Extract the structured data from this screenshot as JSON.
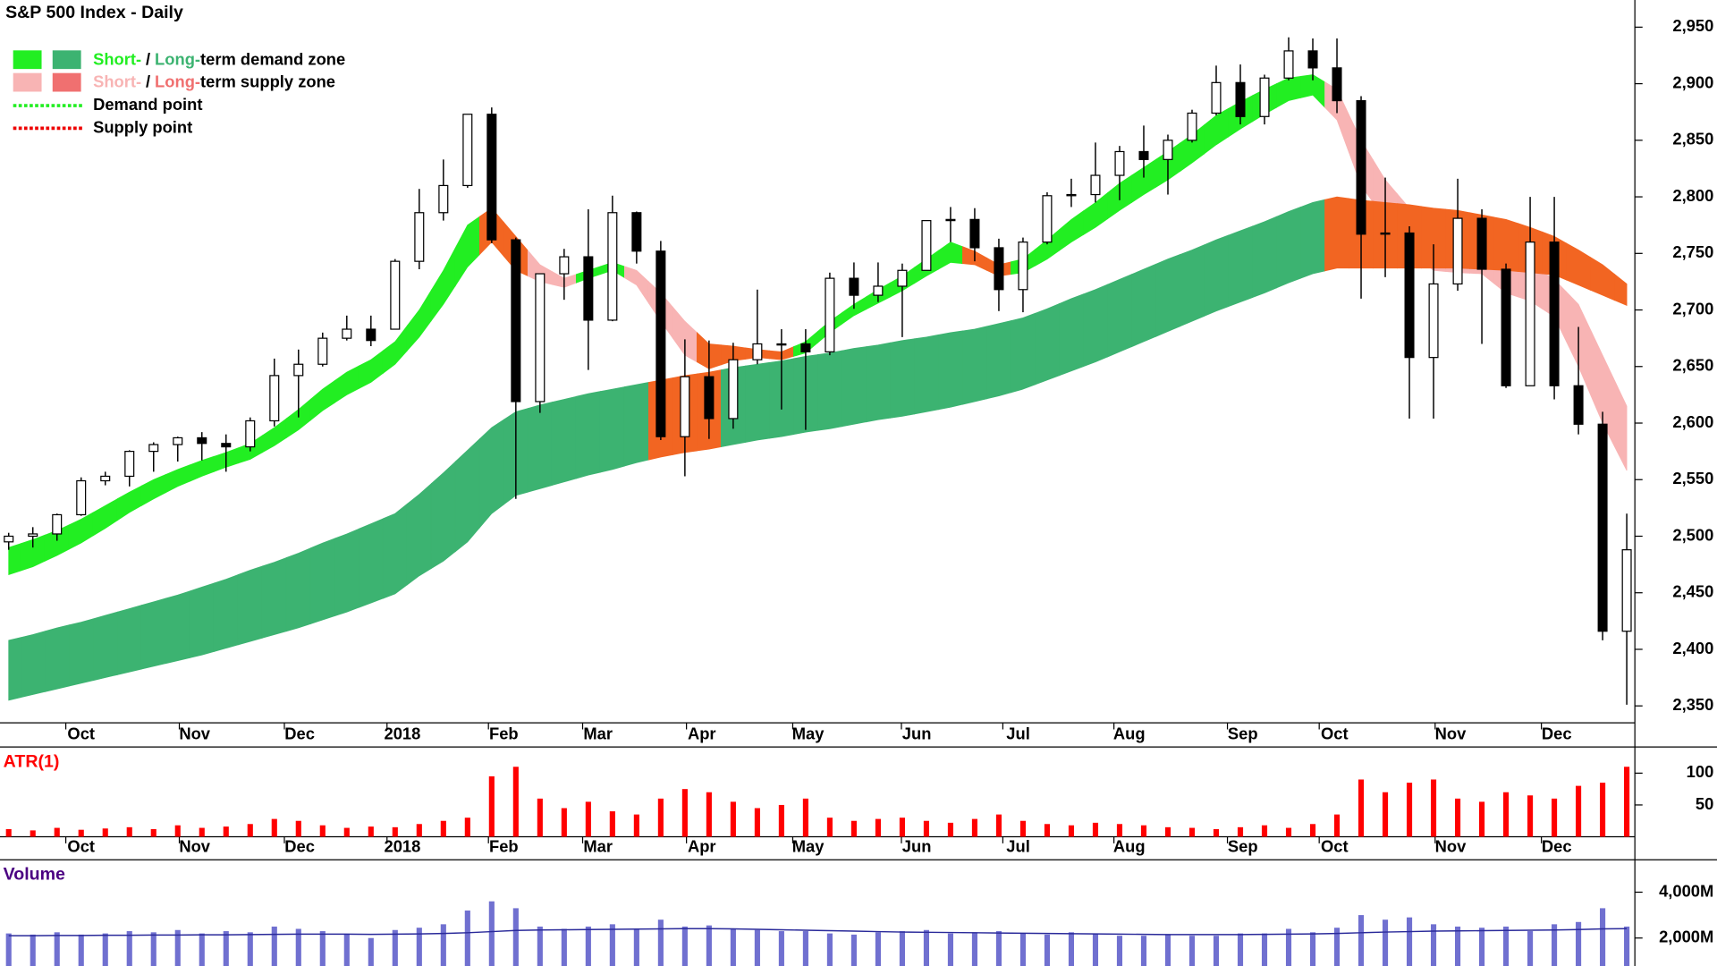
{
  "chart_data": [
    {
      "type": "candlestick",
      "title": "S&P 500 Index - Daily",
      "xlim": [
        -0.36,
        67.2
      ],
      "xticks": [
        {
          "value": 3.0,
          "label": "Oct"
        },
        {
          "value": 7.7,
          "label": "Nov"
        },
        {
          "value": 12.05,
          "label": "Dec"
        },
        {
          "value": 16.3,
          "label": "2018"
        },
        {
          "value": 20.5,
          "label": "Feb"
        },
        {
          "value": 24.4,
          "label": "Mar"
        },
        {
          "value": 28.7,
          "label": "Apr"
        },
        {
          "value": 33.1,
          "label": "May"
        },
        {
          "value": 37.6,
          "label": "Jun"
        },
        {
          "value": 41.8,
          "label": "Jul"
        },
        {
          "value": 46.4,
          "label": "Aug"
        },
        {
          "value": 51.1,
          "label": "Sep"
        },
        {
          "value": 54.9,
          "label": "Oct"
        },
        {
          "value": 59.7,
          "label": "Nov"
        },
        {
          "value": 64.1,
          "label": "Dec"
        }
      ],
      "ylim": [
        2335,
        2974
      ],
      "yticks": [
        {
          "value": 2350,
          "label": "2,350"
        },
        {
          "value": 2400,
          "label": "2,400"
        },
        {
          "value": 2450,
          "label": "2,450"
        },
        {
          "value": 2500,
          "label": "2,500"
        },
        {
          "value": 2550,
          "label": "2,550"
        },
        {
          "value": 2600,
          "label": "2,600"
        },
        {
          "value": 2650,
          "label": "2,650"
        },
        {
          "value": 2700,
          "label": "2,700"
        },
        {
          "value": 2750,
          "label": "2,750"
        },
        {
          "value": 2800,
          "label": "2,800"
        },
        {
          "value": 2850,
          "label": "2,850"
        },
        {
          "value": 2900,
          "label": "2,900"
        },
        {
          "value": 2950,
          "label": "2,950"
        }
      ],
      "up_color": "#ffffff",
      "down_color": "#000000",
      "open": [
        2495,
        2500,
        2502,
        2519,
        2549,
        2553,
        2575,
        2581,
        2587,
        2582,
        2579,
        2602,
        2642,
        2652,
        2675,
        2683,
        2683,
        2743,
        2786,
        2810,
        2873,
        2762,
        2619,
        2732,
        2747,
        2691,
        2786,
        2752,
        2588,
        2641,
        2604,
        2656,
        2670,
        2670,
        2663,
        2728,
        2713,
        2721,
        2735,
        2779,
        2780,
        2755,
        2718,
        2760,
        2801,
        2802,
        2819,
        2840,
        2833,
        2850,
        2874,
        2901,
        2871,
        2905,
        2929,
        2914,
        2885,
        2767,
        2768,
        2658,
        2723,
        2781,
        2736,
        2633,
        2760,
        2633,
        2599,
        2416
      ],
      "high": [
        2503,
        2508,
        2520,
        2552,
        2557,
        2576,
        2583,
        2588,
        2592,
        2590,
        2605,
        2657,
        2665,
        2680,
        2695,
        2695,
        2745,
        2807,
        2833,
        2873,
        2879,
        2764,
        2732,
        2754,
        2789,
        2801,
        2787,
        2761,
        2674,
        2673,
        2671,
        2718,
        2683,
        2683,
        2733,
        2742,
        2742,
        2741,
        2779,
        2791,
        2790,
        2763,
        2764,
        2804,
        2816,
        2848,
        2845,
        2863,
        2855,
        2877,
        2916,
        2917,
        2908,
        2941,
        2940,
        2940,
        2889,
        2817,
        2774,
        2758,
        2816,
        2789,
        2741,
        2800,
        2800,
        2685,
        2610,
        2520
      ],
      "low": [
        2488,
        2490,
        2496,
        2518,
        2545,
        2544,
        2557,
        2566,
        2567,
        2557,
        2575,
        2597,
        2605,
        2650,
        2673,
        2668,
        2683,
        2736,
        2779,
        2808,
        2759,
        2533,
        2609,
        2709,
        2647,
        2690,
        2741,
        2585,
        2553,
        2586,
        2595,
        2652,
        2612,
        2594,
        2660,
        2701,
        2707,
        2676,
        2735,
        2760,
        2743,
        2699,
        2698,
        2758,
        2791,
        2795,
        2797,
        2817,
        2802,
        2848,
        2872,
        2864,
        2864,
        2903,
        2903,
        2874,
        2710,
        2729,
        2604,
        2604,
        2717,
        2670,
        2631,
        2633,
        2621,
        2590,
        2408,
        2351
      ],
      "close": [
        2500,
        2502,
        2519,
        2549,
        2553,
        2575,
        2581,
        2587,
        2582,
        2579,
        2602,
        2642,
        2652,
        2675,
        2683,
        2673,
        2743,
        2786,
        2810,
        2873,
        2762,
        2619,
        2732,
        2747,
        2691,
        2786,
        2752,
        2588,
        2641,
        2604,
        2656,
        2670,
        2670,
        2663,
        2728,
        2713,
        2721,
        2735,
        2779,
        2780,
        2755,
        2718,
        2760,
        2801,
        2802,
        2819,
        2840,
        2833,
        2850,
        2874,
        2901,
        2871,
        2905,
        2929,
        2914,
        2885,
        2767,
        2768,
        2658,
        2723,
        2781,
        2736,
        2633,
        2760,
        2633,
        2599,
        2416,
        2488
      ],
      "zones": [
        {
          "upper": [
            2490,
            2497,
            2505,
            2515,
            2527,
            2539,
            2550,
            2559,
            2567,
            2574,
            2582,
            2596,
            2612,
            2630,
            2645,
            2656,
            2672,
            2700,
            2735,
            2775,
            2790,
            2765,
            2740,
            2728,
            2735,
            2742,
            2735,
            2715,
            2690,
            2670,
            2668,
            2665,
            2663,
            2672,
            2690,
            2705,
            2718,
            2730,
            2745,
            2760,
            2752,
            2740,
            2745,
            2762,
            2780,
            2795,
            2812,
            2826,
            2840,
            2855,
            2872,
            2884,
            2895,
            2905,
            2908,
            2895,
            2850,
            2815,
            2790,
            2772,
            2765,
            2760,
            2748,
            2740,
            2727,
            2705,
            2660,
            2615
          ],
          "lower": [
            2466,
            2473,
            2483,
            2494,
            2507,
            2521,
            2533,
            2544,
            2553,
            2561,
            2568,
            2580,
            2594,
            2611,
            2625,
            2636,
            2652,
            2676,
            2705,
            2738,
            2760,
            2735,
            2725,
            2720,
            2728,
            2735,
            2722,
            2690,
            2660,
            2648,
            2655,
            2658,
            2656,
            2662,
            2680,
            2695,
            2706,
            2717,
            2730,
            2742,
            2740,
            2730,
            2733,
            2745,
            2760,
            2773,
            2788,
            2802,
            2815,
            2830,
            2846,
            2860,
            2873,
            2885,
            2890,
            2868,
            2810,
            2780,
            2752,
            2735,
            2733,
            2732,
            2715,
            2708,
            2694,
            2650,
            2600,
            2558
          ],
          "colors": [
            "#22ee22",
            "#22ee22",
            "#22ee22",
            "#22ee22",
            "#22ee22",
            "#22ee22",
            "#22ee22",
            "#22ee22",
            "#22ee22",
            "#22ee22",
            "#22ee22",
            "#22ee22",
            "#22ee22",
            "#22ee22",
            "#22ee22",
            "#22ee22",
            "#22ee22",
            "#22ee22",
            "#22ee22",
            "#22ee22",
            "#f26522",
            "#f26522",
            "#f8b4b4",
            "#f8b4b4",
            "#22ee22",
            "#22ee22",
            "#f8b4b4",
            "#f8b4b4",
            "#f8b4b4",
            "#f26522",
            "#f26522",
            "#f26522",
            "#f26522",
            "#22ee22",
            "#22ee22",
            "#22ee22",
            "#22ee22",
            "#22ee22",
            "#22ee22",
            "#22ee22",
            "#f26522",
            "#f26522",
            "#22ee22",
            "#22ee22",
            "#22ee22",
            "#22ee22",
            "#22ee22",
            "#22ee22",
            "#22ee22",
            "#22ee22",
            "#22ee22",
            "#22ee22",
            "#22ee22",
            "#22ee22",
            "#22ee22",
            "#f8b4b4",
            "#f8b4b4",
            "#f8b4b4",
            "#f8b4b4",
            "#f8b4b4",
            "#f8b4b4",
            "#f8b4b4",
            "#f8b4b4",
            "#f8b4b4",
            "#f8b4b4",
            "#f8b4b4",
            "#f8b4b4",
            "#f8b4b4"
          ]
        },
        {
          "upper": [
            2408,
            2413,
            2419,
            2424,
            2430,
            2436,
            2442,
            2448,
            2455,
            2462,
            2470,
            2477,
            2485,
            2494,
            2502,
            2511,
            2520,
            2537,
            2556,
            2576,
            2596,
            2610,
            2616,
            2621,
            2626,
            2630,
            2634,
            2638,
            2642,
            2645,
            2649,
            2652,
            2655,
            2659,
            2662,
            2666,
            2669,
            2673,
            2676,
            2680,
            2683,
            2688,
            2693,
            2701,
            2710,
            2718,
            2727,
            2736,
            2745,
            2753,
            2762,
            2770,
            2778,
            2787,
            2795,
            2800,
            2797,
            2795,
            2793,
            2790,
            2788,
            2784,
            2780,
            2773,
            2765,
            2753,
            2740,
            2723
          ],
          "lower": [
            2355,
            2360,
            2365,
            2370,
            2375,
            2380,
            2385,
            2390,
            2395,
            2401,
            2407,
            2413,
            2419,
            2426,
            2433,
            2441,
            2449,
            2465,
            2478,
            2495,
            2520,
            2536,
            2542,
            2548,
            2554,
            2559,
            2565,
            2570,
            2574,
            2577,
            2581,
            2585,
            2588,
            2592,
            2595,
            2599,
            2603,
            2606,
            2610,
            2614,
            2619,
            2624,
            2630,
            2638,
            2646,
            2654,
            2663,
            2672,
            2681,
            2690,
            2699,
            2707,
            2715,
            2724,
            2732,
            2737,
            2737,
            2737,
            2737,
            2737,
            2737,
            2736,
            2735,
            2733,
            2731,
            2722,
            2713,
            2704
          ],
          "colors": [
            "#3cb371",
            "#3cb371",
            "#3cb371",
            "#3cb371",
            "#3cb371",
            "#3cb371",
            "#3cb371",
            "#3cb371",
            "#3cb371",
            "#3cb371",
            "#3cb371",
            "#3cb371",
            "#3cb371",
            "#3cb371",
            "#3cb371",
            "#3cb371",
            "#3cb371",
            "#3cb371",
            "#3cb371",
            "#3cb371",
            "#3cb371",
            "#3cb371",
            "#3cb371",
            "#3cb371",
            "#3cb371",
            "#3cb371",
            "#3cb371",
            "#f26522",
            "#f26522",
            "#f26522",
            "#3cb371",
            "#3cb371",
            "#3cb371",
            "#3cb371",
            "#3cb371",
            "#3cb371",
            "#3cb371",
            "#3cb371",
            "#3cb371",
            "#3cb371",
            "#3cb371",
            "#3cb371",
            "#3cb371",
            "#3cb371",
            "#3cb371",
            "#3cb371",
            "#3cb371",
            "#3cb371",
            "#3cb371",
            "#3cb371",
            "#3cb371",
            "#3cb371",
            "#3cb371",
            "#3cb371",
            "#3cb371",
            "#f26522",
            "#f26522",
            "#f26522",
            "#f26522",
            "#f26522",
            "#f26522",
            "#f26522",
            "#f26522",
            "#f26522",
            "#f26522",
            "#f26522",
            "#f26522",
            "#f26522"
          ]
        }
      ],
      "legend": [
        {
          "swatches": [
            "#22ee22",
            "#3cb371"
          ],
          "parts": [
            {
              "text": "Short-",
              "color": "#22ee22"
            },
            {
              "text": "/",
              "color": "#000000"
            },
            {
              "text": "Long-",
              "color": "#3cb371"
            },
            {
              "text": "term demand zone",
              "color": "#000000"
            }
          ]
        },
        {
          "swatches": [
            "#f8b4b4",
            "#f07070"
          ],
          "parts": [
            {
              "text": "Short-",
              "color": "#f8b4b4"
            },
            {
              "text": "/",
              "color": "#000000"
            },
            {
              "text": "Long-",
              "color": "#f07070"
            },
            {
              "text": "term supply zone",
              "color": "#000000"
            }
          ]
        },
        {
          "line": "#22ee22",
          "parts": [
            {
              "text": "Demand point",
              "color": "#000000"
            }
          ]
        },
        {
          "line": "#ee0000",
          "parts": [
            {
              "text": "Supply point",
              "color": "#000000"
            }
          ]
        }
      ]
    },
    {
      "type": "bar",
      "title": "ATR(1)",
      "title_color": "#ff0000",
      "color": "#ff0000",
      "values": [
        12,
        10,
        14,
        11,
        13,
        15,
        12,
        18,
        14,
        16,
        20,
        28,
        25,
        18,
        14,
        16,
        15,
        20,
        25,
        30,
        95,
        110,
        60,
        45,
        55,
        40,
        35,
        60,
        75,
        70,
        55,
        45,
        50,
        60,
        30,
        25,
        28,
        30,
        25,
        22,
        28,
        35,
        25,
        20,
        18,
        22,
        20,
        18,
        15,
        14,
        12,
        15,
        18,
        14,
        20,
        35,
        90,
        70,
        85,
        90,
        60,
        55,
        70,
        65,
        60,
        80,
        85,
        110
      ],
      "ylim": [
        0,
        136
      ],
      "yticks": [
        50,
        100
      ]
    },
    {
      "type": "bar",
      "title": "Volume",
      "title_color": "#4b0082",
      "color": "#7070d0",
      "values": [
        2200,
        2150,
        2250,
        2150,
        2200,
        2300,
        2250,
        2350,
        2200,
        2300,
        2250,
        2500,
        2400,
        2300,
        2150,
        2000,
        2350,
        2450,
        2600,
        3200,
        3600,
        3300,
        2500,
        2400,
        2500,
        2600,
        2400,
        2800,
        2500,
        2550,
        2400,
        2350,
        2300,
        2300,
        2200,
        2150,
        2250,
        2300,
        2350,
        2200,
        2250,
        2300,
        2200,
        2150,
        2250,
        2200,
        2100,
        2100,
        2150,
        2100,
        2100,
        2200,
        2200,
        2400,
        2250,
        2450,
        3000,
        2800,
        2900,
        2600,
        2500,
        2450,
        2500,
        2300,
        2600,
        2700,
        3300,
        2500
      ],
      "ma": [
        2100,
        2100,
        2110,
        2110,
        2120,
        2120,
        2130,
        2130,
        2140,
        2140,
        2150,
        2160,
        2170,
        2170,
        2170,
        2160,
        2170,
        2180,
        2200,
        2230,
        2280,
        2330,
        2350,
        2360,
        2370,
        2380,
        2390,
        2400,
        2410,
        2410,
        2400,
        2380,
        2360,
        2340,
        2320,
        2300,
        2280,
        2260,
        2250,
        2240,
        2230,
        2220,
        2210,
        2200,
        2190,
        2180,
        2170,
        2160,
        2150,
        2150,
        2150,
        2150,
        2160,
        2170,
        2180,
        2200,
        2230,
        2260,
        2280,
        2300,
        2310,
        2320,
        2330,
        2340,
        2350,
        2370,
        2400,
        2410
      ],
      "ma_color": "#2a2a9a",
      "ylim": [
        780,
        5270
      ],
      "yticks": [
        {
          "value": 2000,
          "label": "2,000M"
        },
        {
          "value": 4000,
          "label": "4,000M"
        }
      ]
    }
  ]
}
